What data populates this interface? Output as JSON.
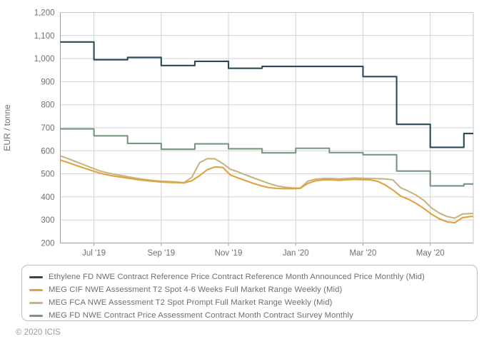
{
  "footer": {
    "copyright": "© 2020 ICIS"
  },
  "axes": {
    "ylabel": "EUR / tonne",
    "y_ticks": [
      {
        "v": 200,
        "label": "200"
      },
      {
        "v": 300,
        "label": "300"
      },
      {
        "v": 400,
        "label": "400"
      },
      {
        "v": 500,
        "label": "500"
      },
      {
        "v": 600,
        "label": "600"
      },
      {
        "v": 700,
        "label": "700"
      },
      {
        "v": 800,
        "label": "800"
      },
      {
        "v": 900,
        "label": "900"
      },
      {
        "v": 1000,
        "label": "1,000"
      },
      {
        "v": 1100,
        "label": "1,100"
      },
      {
        "v": 1200,
        "label": "1,200"
      }
    ],
    "x_ticks": [
      {
        "t": 1,
        "label": "Jul '19"
      },
      {
        "t": 3,
        "label": "Sep '19"
      },
      {
        "t": 5,
        "label": "Nov '19"
      },
      {
        "t": 7,
        "label": "Jan '20"
      },
      {
        "t": 9,
        "label": "Mar '20"
      },
      {
        "t": 11,
        "label": "May '20"
      }
    ]
  },
  "chart_data": {
    "type": "line",
    "title": "",
    "xlabel": "",
    "ylabel": "EUR / tonne",
    "ylim": [
      200,
      1200
    ],
    "x_range": "Jun 2019 to early Jun 2020",
    "x_domain_months": 12.28,
    "grid": true,
    "legend_position": "bottom",
    "months": [
      "Jun '19",
      "Jul '19",
      "Aug '19",
      "Sep '19",
      "Oct '19",
      "Nov '19",
      "Dec '19",
      "Jan '20",
      "Feb '20",
      "Mar '20",
      "Apr '20",
      "May '20",
      "Jun '20"
    ],
    "series": [
      {
        "name": "Ethylene FD NWE Contract Reference Price Contract Reference Month Announced Price Monthly (Mid)",
        "color": "#2c4a54",
        "mode": "step-monthly",
        "values": [
          1072,
          995,
          1005,
          970,
          988,
          958,
          966,
          966,
          966,
          922,
          715,
          615,
          675
        ]
      },
      {
        "name": "MEG CIF NWE Assessment T2 Spot 4-6 Weeks Full Market Range Weekly (Mid)",
        "color": "#dfa23e",
        "mode": "weekly",
        "values": [
          560,
          549,
          537,
          526,
          515,
          504,
          496,
          490,
          485,
          480,
          475,
          471,
          468,
          465,
          463,
          462,
          461,
          470,
          492,
          518,
          530,
          528,
          495,
          482,
          470,
          458,
          448,
          440,
          437,
          436,
          436,
          437,
          458,
          470,
          474,
          474,
          472,
          474,
          476,
          475,
          474,
          468,
          452,
          430,
          404,
          390,
          372,
          350,
          325,
          305,
          292,
          288,
          310,
          315
        ]
      },
      {
        "name": "MEG FCA NWE Assessment T2 Spot Prompt Full Market Range Weekly (Mid)",
        "color": "#c6b57f",
        "mode": "weekly",
        "values": [
          578,
          566,
          553,
          540,
          527,
          514,
          505,
          498,
          492,
          486,
          480,
          475,
          471,
          468,
          467,
          465,
          462,
          485,
          548,
          566,
          565,
          545,
          520,
          508,
          495,
          482,
          470,
          458,
          448,
          442,
          439,
          438,
          468,
          477,
          480,
          480,
          478,
          480,
          482,
          481,
          480,
          479,
          478,
          474,
          440,
          425,
          408,
          385,
          352,
          330,
          315,
          308,
          326,
          328
        ]
      },
      {
        "name": "MEG FD NWE Contract Price Assessment Contract Month Contract Survey Monthly",
        "color": "#75987e",
        "mode": "step-monthly",
        "values": [
          695,
          665,
          632,
          607,
          630,
          609,
          591,
          611,
          592,
          583,
          512,
          448,
          456
        ]
      }
    ]
  },
  "style_colors": {
    "gridline": "#d2d2d2",
    "frame": "#c7c7c7",
    "axis": "#9b9b9b",
    "tick_text": "#707070"
  }
}
